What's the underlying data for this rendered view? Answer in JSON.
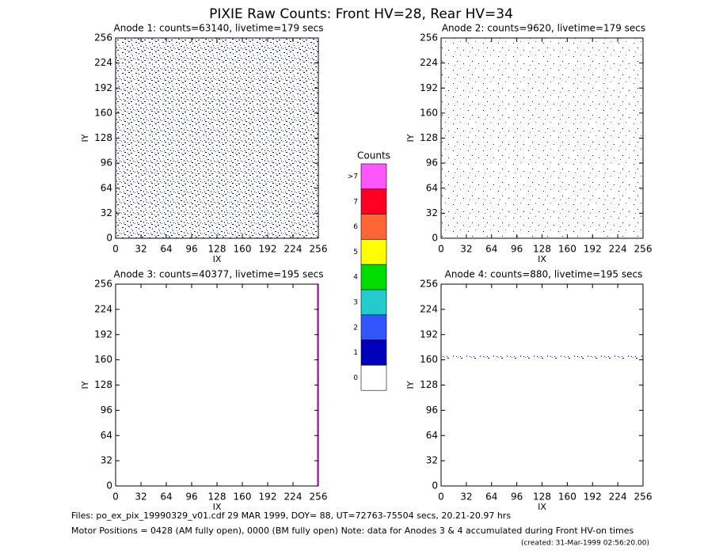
{
  "title": "PIXIE Raw Counts:  Front HV=28, Rear HV=34",
  "chart_data": [
    {
      "type": "heatmap",
      "title": "Anode 1: counts=63140, livetime=179 secs",
      "xlabel": "IX",
      "ylabel": "IY",
      "xlim": [
        0,
        256
      ],
      "ylim": [
        0,
        256
      ],
      "xticks": [
        0,
        32,
        64,
        96,
        128,
        160,
        192,
        224,
        256
      ],
      "yticks": [
        0,
        32,
        64,
        96,
        128,
        160,
        192,
        224,
        256
      ]
    },
    {
      "type": "heatmap",
      "title": "Anode 2: counts=9620, livetime=179 secs",
      "xlabel": "IX",
      "ylabel": "IY",
      "xlim": [
        0,
        256
      ],
      "ylim": [
        0,
        256
      ],
      "xticks": [
        0,
        32,
        64,
        96,
        128,
        160,
        192,
        224,
        256
      ],
      "yticks": [
        0,
        32,
        64,
        96,
        128,
        160,
        192,
        224,
        256
      ]
    },
    {
      "type": "heatmap",
      "title": "Anode 3: counts=40377, livetime=195 secs",
      "xlabel": "IX",
      "ylabel": "IY",
      "xlim": [
        0,
        256
      ],
      "ylim": [
        0,
        256
      ],
      "xticks": [
        0,
        32,
        64,
        96,
        128,
        160,
        192,
        224,
        256
      ],
      "yticks": [
        0,
        32,
        64,
        96,
        128,
        160,
        192,
        224,
        256
      ]
    },
    {
      "type": "heatmap",
      "title": "Anode 4: counts=880, livetime=195 secs",
      "xlabel": "IX",
      "ylabel": "IY",
      "xlim": [
        0,
        256
      ],
      "ylim": [
        0,
        256
      ],
      "xticks": [
        0,
        32,
        64,
        96,
        128,
        160,
        192,
        224,
        256
      ],
      "yticks": [
        0,
        32,
        64,
        96,
        128,
        160,
        192,
        224,
        256
      ]
    }
  ],
  "colorbar": {
    "title": "Counts",
    "labels": [
      ">7",
      "7",
      "6",
      "5",
      "4",
      "3",
      "2",
      "1",
      "0"
    ],
    "colors": [
      "#ff55ff",
      "#ff0022",
      "#ff6633",
      "#ffff00",
      "#00dd00",
      "#22cccc",
      "#3355ff",
      "#0000bb",
      "#ffffff"
    ]
  },
  "footer": {
    "files": "Files: po_ex_pix_19990329_v01.cdf   29 MAR 1999, DOY= 88, UT=72763-75504 secs, 20.21-20.97 hrs",
    "motor": "Motor Positions = 0428 (AM fully open), 0000 (BM fully open)    Note: data for Anodes 3 & 4 accumulated during Front HV-on times",
    "created": "(created: 31-Mar-1999 02:56:20.00)"
  }
}
